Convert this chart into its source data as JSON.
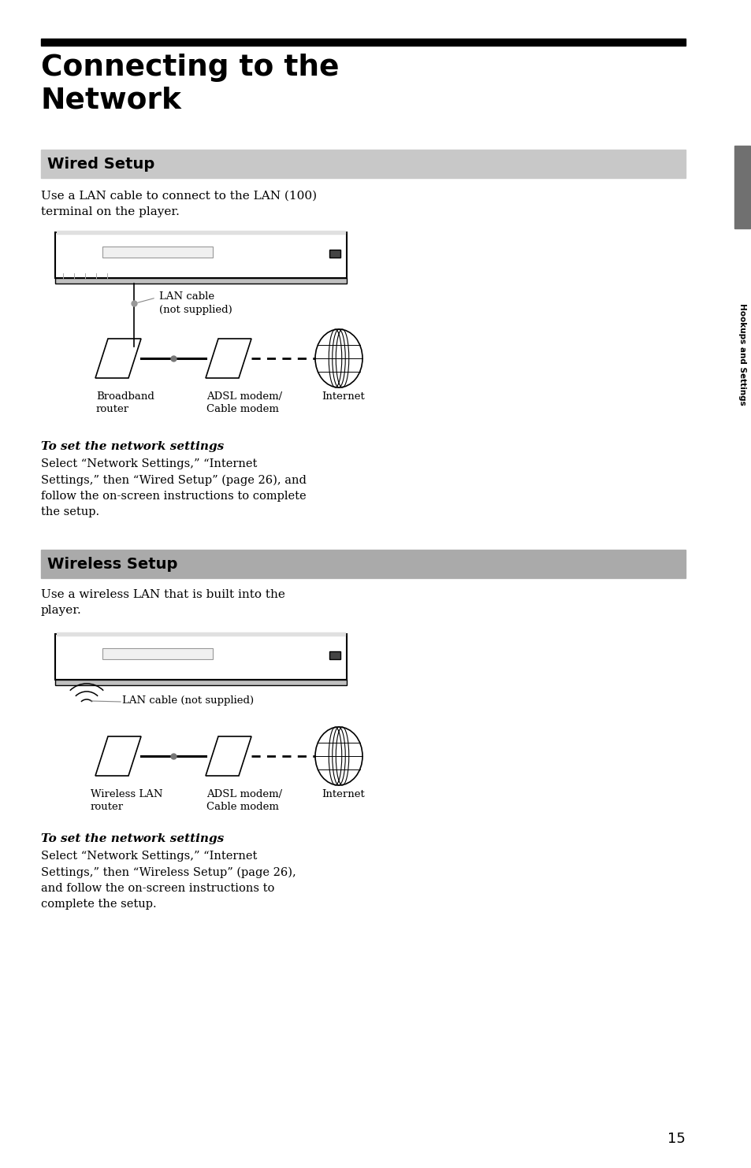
{
  "title_line1": "Connecting to the",
  "title_line2": "Network",
  "page_bg": "#ffffff",
  "section1_title": "Wired Setup",
  "section1_bg": "#c8c8c8",
  "section1_text1": "Use a LAN cable to connect to the LAN (100)",
  "section1_text2": "terminal on the player.",
  "section1_sub_title": "To set the network settings",
  "section1_sub_text": "Select “Network Settings,” “Internet\nSettings,” then “Wired Setup” (page 26), and\nfollow the on-screen instructions to complete\nthe setup.",
  "section1_lan_label": "LAN cable\n(not supplied)",
  "section1_dev1_label": "Broadband\nrouter",
  "section1_dev2_label": "ADSL modem/\nCable modem",
  "section1_dev3_label": "Internet",
  "section2_title": "Wireless Setup",
  "section2_bg": "#aaaaaa",
  "section2_text1": "Use a wireless LAN that is built into the",
  "section2_text2": "player.",
  "section2_sub_title": "To set the network settings",
  "section2_sub_text": "Select “Network Settings,” “Internet\nSettings,” then “Wireless Setup” (page 26),\nand follow the on-screen instructions to\ncomplete the setup.",
  "section2_lan_label": "LAN cable (not supplied)",
  "section2_dev1_label": "Wireless LAN\nrouter",
  "section2_dev2_label": "ADSL modem/\nCable modem",
  "section2_dev3_label": "Internet",
  "sidebar_text": "Hookups and Settings",
  "sidebar_color": "#707070",
  "page_number": "15"
}
